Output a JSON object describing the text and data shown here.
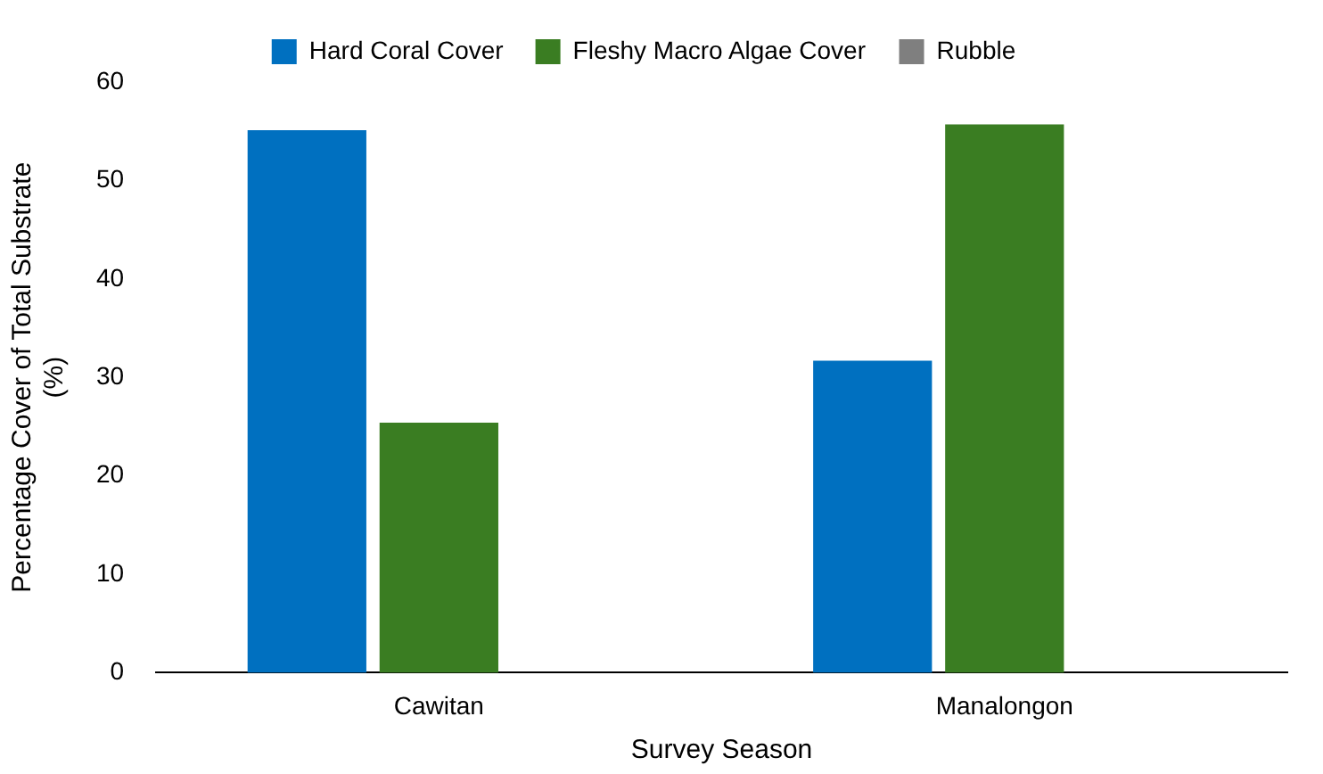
{
  "chart_data": {
    "type": "bar",
    "xlabel": "Survey Season",
    "ylabel": "Percentage Cover of Total Substrate\n(%)",
    "categories": [
      "Cawitan",
      "Manalongon"
    ],
    "series": [
      {
        "name": "Hard Coral Cover",
        "color": "#0070c0",
        "values": [
          55.1,
          31.7
        ]
      },
      {
        "name": "Fleshy Macro Algae Cover",
        "color": "#3a7d22",
        "values": [
          25.4,
          55.7
        ]
      },
      {
        "name": "Rubble",
        "color": "#7f7f7f",
        "values": [
          0,
          0
        ]
      }
    ],
    "ylim": [
      0,
      60
    ],
    "yticks": [
      0,
      10,
      20,
      30,
      40,
      50,
      60
    ],
    "grid": false,
    "legend": "top"
  }
}
